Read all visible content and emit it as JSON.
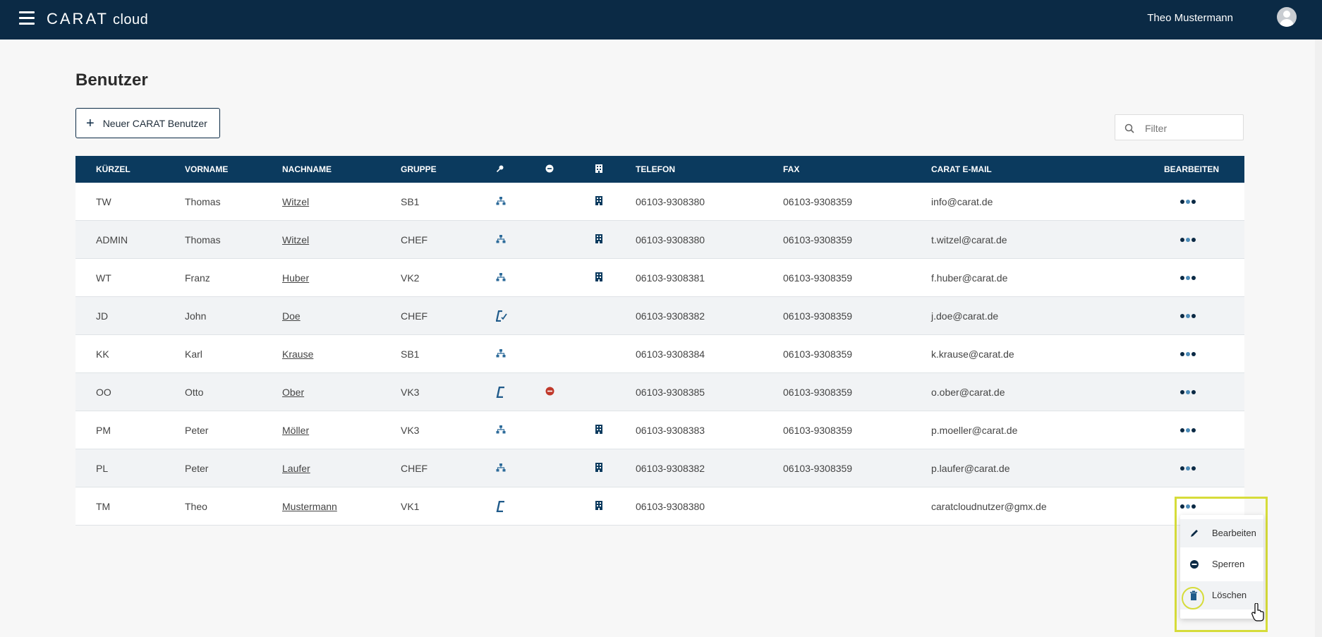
{
  "app": {
    "logo_text": "CARAT",
    "logo_suffix": "cloud",
    "user_name": "Theo Mustermann"
  },
  "page": {
    "title": "Benutzer",
    "new_user_label": "Neuer CARAT Benutzer",
    "filter_placeholder": "Filter"
  },
  "table": {
    "headers": {
      "kuerzel": "KÜRZEL",
      "vorname": "VORNAME",
      "nachname": "NACHNAME",
      "gruppe": "GRUPPE",
      "telefon": "TELEFON",
      "fax": "FAX",
      "email": "CARAT E-MAIL",
      "bearbeiten": "BEARBEITEN"
    },
    "header_icons": [
      "key-icon",
      "blocked-icon",
      "building-icon"
    ],
    "rows": [
      {
        "kuerzel": "TW",
        "vorname": "Thomas",
        "nachname": "Witzel",
        "gruppe": "SB1",
        "type_icon": "network-icon",
        "blocked": false,
        "office": true,
        "telefon": "06103-9308380",
        "fax": "06103-9308359",
        "email": "info@carat.de"
      },
      {
        "kuerzel": "ADMIN",
        "vorname": "Thomas",
        "nachname": "Witzel",
        "gruppe": "CHEF",
        "type_icon": "network-icon",
        "blocked": false,
        "office": true,
        "telefon": "06103-9308380",
        "fax": "06103-9308359",
        "email": "t.witzel@carat.de"
      },
      {
        "kuerzel": "WT",
        "vorname": "Franz",
        "nachname": "Huber",
        "gruppe": "VK2",
        "type_icon": "network-icon",
        "blocked": false,
        "office": true,
        "telefon": "06103-9308381",
        "fax": "06103-9308359",
        "email": "f.huber@carat.de"
      },
      {
        "kuerzel": "JD",
        "vorname": "John",
        "nachname": "Doe",
        "gruppe": "CHEF",
        "type_icon": "carat-check-icon",
        "blocked": false,
        "office": false,
        "telefon": "06103-9308382",
        "fax": "06103-9308359",
        "email": "j.doe@carat.de"
      },
      {
        "kuerzel": "KK",
        "vorname": "Karl",
        "nachname": "Krause",
        "gruppe": "SB1",
        "type_icon": "network-icon",
        "blocked": false,
        "office": false,
        "telefon": "06103-9308384",
        "fax": "06103-9308359",
        "email": "k.krause@carat.de"
      },
      {
        "kuerzel": "OO",
        "vorname": "Otto",
        "nachname": "Ober",
        "gruppe": "VK3",
        "type_icon": "carat-icon",
        "blocked": true,
        "office": false,
        "telefon": "06103-9308385",
        "fax": "06103-9308359",
        "email": "o.ober@carat.de"
      },
      {
        "kuerzel": "PM",
        "vorname": "Peter",
        "nachname": "Möller",
        "gruppe": "VK3",
        "type_icon": "network-icon",
        "blocked": false,
        "office": true,
        "telefon": "06103-9308383",
        "fax": "06103-9308359",
        "email": "p.moeller@carat.de"
      },
      {
        "kuerzel": "PL",
        "vorname": "Peter",
        "nachname": "Laufer",
        "gruppe": "CHEF",
        "type_icon": "network-icon",
        "blocked": false,
        "office": true,
        "telefon": "06103-9308382",
        "fax": "06103-9308359",
        "email": "p.laufer@carat.de"
      },
      {
        "kuerzel": "TM",
        "vorname": "Theo",
        "nachname": "Mustermann",
        "gruppe": "VK1",
        "type_icon": "carat-icon",
        "blocked": false,
        "office": true,
        "telefon": "06103-9308380",
        "fax": "",
        "email": "caratcloudnutzer@gmx.de"
      }
    ]
  },
  "context_menu": {
    "items": [
      {
        "label": "Bearbeiten",
        "icon": "pencil-icon"
      },
      {
        "label": "Sperren",
        "icon": "block-icon"
      },
      {
        "label": "Löschen",
        "icon": "trash-icon"
      }
    ]
  },
  "colors": {
    "primary": "#0b2a45",
    "header": "#0b3a5e",
    "accent": "#c7d80e",
    "highlight": "#d6dc3a",
    "danger": "#c0392b"
  }
}
